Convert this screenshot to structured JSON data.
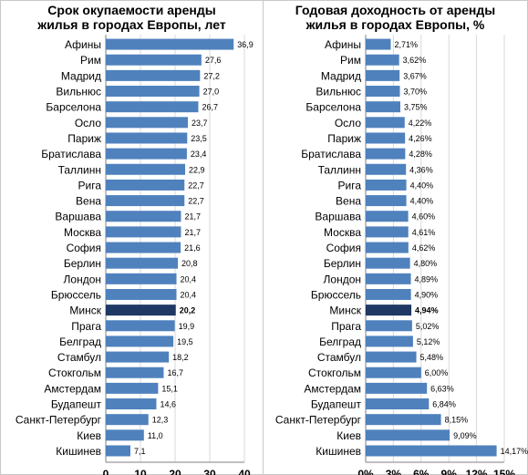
{
  "chart_data": [
    {
      "type": "bar",
      "orientation": "horizontal",
      "title": "Срок окупаемости аренды жилья в городах Европы, лет",
      "title_lines": [
        "Срок окупаемости аренды",
        "жилья в городах Европы, лет"
      ],
      "categories": [
        "Афины",
        "Рим",
        "Мадрид",
        "Вильнюс",
        "Барселона",
        "Осло",
        "Париж",
        "Братислава",
        "Таллинн",
        "Рига",
        "Вена",
        "Варшава",
        "Москва",
        "София",
        "Берлин",
        "Лондон",
        "Брюссель",
        "Минск",
        "Прага",
        "Белград",
        "Стамбул",
        "Стокгольм",
        "Амстердам",
        "Будапешт",
        "Санкт-Петербург",
        "Киев",
        "Кишинев"
      ],
      "values": [
        36.9,
        27.6,
        27.2,
        27.0,
        26.7,
        23.7,
        23.5,
        23.4,
        22.9,
        22.7,
        22.7,
        21.7,
        21.7,
        21.6,
        20.8,
        20.4,
        20.4,
        20.2,
        19.9,
        19.5,
        18.2,
        16.7,
        15.1,
        14.6,
        12.3,
        11.0,
        7.1
      ],
      "value_labels": [
        "36,9",
        "27,6",
        "27,2",
        "27,0",
        "26,7",
        "23,7",
        "23,5",
        "23,4",
        "22,9",
        "22,7",
        "22,7",
        "21,7",
        "21,7",
        "21,6",
        "20,8",
        "20,4",
        "20,4",
        "20,2",
        "19,9",
        "19,5",
        "18,2",
        "16,7",
        "15,1",
        "14,6",
        "12,3",
        "11,0",
        "7,1"
      ],
      "highlight": "Минск",
      "xlim": [
        0,
        40
      ],
      "xticks": [
        0,
        10,
        20,
        30,
        40
      ],
      "xtick_labels": [
        "0",
        "10",
        "20",
        "30",
        "40"
      ],
      "grid": "vertical",
      "colors": {
        "bar": "#4f81bd",
        "highlight": "#1f3864",
        "grid": "#d9d9d9"
      }
    },
    {
      "type": "bar",
      "orientation": "horizontal",
      "title": "Годовая доходность от аренды жилья в городах Европы, %",
      "title_lines": [
        "Годовая доходность  от аренды",
        "жилья в городах Европы, %"
      ],
      "categories": [
        "Афины",
        "Рим",
        "Мадрид",
        "Вильнюс",
        "Барселона",
        "Осло",
        "Париж",
        "Братислава",
        "Таллинн",
        "Рига",
        "Вена",
        "Варшава",
        "Москва",
        "София",
        "Берлин",
        "Лондон",
        "Брюссель",
        "Минск",
        "Прага",
        "Белград",
        "Стамбул",
        "Стокгольм",
        "Амстердам",
        "Будапешт",
        "Санкт-Петербург",
        "Киев",
        "Кишинев"
      ],
      "values": [
        2.71,
        3.62,
        3.67,
        3.7,
        3.75,
        4.22,
        4.26,
        4.28,
        4.36,
        4.4,
        4.4,
        4.6,
        4.61,
        4.62,
        4.8,
        4.89,
        4.9,
        4.94,
        5.02,
        5.12,
        5.48,
        6.0,
        6.63,
        6.84,
        8.15,
        9.09,
        14.17
      ],
      "value_labels": [
        "2,71%",
        "3,62%",
        "3,67%",
        "3,70%",
        "3,75%",
        "4,22%",
        "4,26%",
        "4,28%",
        "4,36%",
        "4,40%",
        "4,40%",
        "4,60%",
        "4,61%",
        "4,62%",
        "4,80%",
        "4,89%",
        "4,90%",
        "4,94%",
        "5,02%",
        "5,12%",
        "5,48%",
        "6,00%",
        "6,63%",
        "6,84%",
        "8,15%",
        "9,09%",
        "14,17%"
      ],
      "highlight": "Минск",
      "xlim": [
        0,
        15
      ],
      "xticks": [
        0,
        3,
        6,
        9,
        12,
        15
      ],
      "xtick_labels": [
        "0%",
        "3%",
        "6%",
        "9%",
        "12%",
        "15%"
      ],
      "grid": "vertical",
      "colors": {
        "bar": "#4f81bd",
        "highlight": "#1f3864",
        "grid": "#d9d9d9"
      }
    }
  ]
}
